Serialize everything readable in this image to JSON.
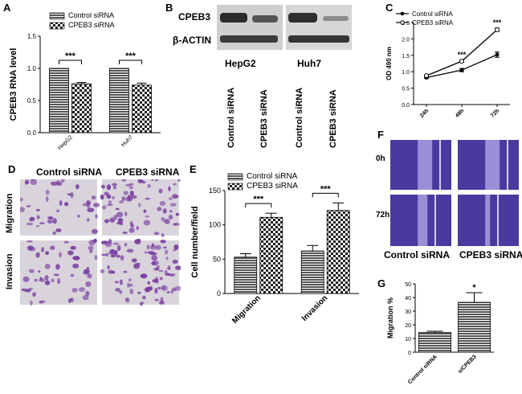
{
  "panels": {
    "A": "A",
    "B": "B",
    "C": "C",
    "D": "D",
    "E": "E",
    "F": "F",
    "G": "G"
  },
  "blot": {
    "row_labels": [
      "CPEB3",
      "β-ACTIN"
    ],
    "cell_lines": [
      "HepG2",
      "Huh7"
    ],
    "lanes": [
      "Control siRNA",
      "CPEB3 siRNA",
      "Control siRNA",
      "CPEB3 siRNA"
    ]
  },
  "transwell": {
    "columns": [
      "Control siRNA",
      "CPEB3 siRNA"
    ],
    "rows": [
      "Migration",
      "Invasion"
    ]
  },
  "wound": {
    "rows": [
      "0h",
      "72h"
    ],
    "columns": [
      "Control siRNA",
      "CPEB3 siRNA"
    ]
  },
  "colors": {
    "purple_dark": "#4a3aa0",
    "purple_light": "#9a8fd6",
    "stain": "#7a3fa0",
    "bg_stain": "#d9d4dc"
  },
  "chart_data": [
    {
      "id": "A",
      "type": "bar",
      "categories": [
        "HepG2",
        "Huh7"
      ],
      "series": [
        {
          "name": "Control siRNA",
          "values": [
            1.0,
            1.0
          ],
          "errors": [
            0,
            0
          ]
        },
        {
          "name": "CPEB3 siRNA",
          "values": [
            0.76,
            0.74
          ],
          "errors": [
            0.02,
            0.03
          ]
        }
      ],
      "ylabel": "CPEB3 RNA level",
      "ylim": [
        0,
        1.5
      ],
      "yticks": [
        "0.0",
        "0.5",
        "1.0",
        "1.5"
      ],
      "significance": [
        "***",
        "***"
      ]
    },
    {
      "id": "C",
      "type": "line",
      "x": [
        "24h",
        "48h",
        "72h"
      ],
      "series": [
        {
          "name": "Control siRNA",
          "values": [
            0.82,
            1.05,
            1.52
          ],
          "errors": [
            0.02,
            0.05,
            0.08
          ]
        },
        {
          "name": "CPEB3 siRNA",
          "values": [
            0.88,
            1.32,
            2.28
          ],
          "errors": [
            0.02,
            0.03,
            0.05
          ]
        }
      ],
      "ylabel": "OD 490 nm",
      "ylim": [
        0,
        2.5
      ],
      "yticks": [
        "0.0",
        "0.5",
        "1.0",
        "1.5",
        "2.0",
        "2.5"
      ],
      "significance": [
        "",
        "***",
        "***"
      ]
    },
    {
      "id": "E",
      "type": "bar",
      "categories": [
        "Migration",
        "Invasion"
      ],
      "series": [
        {
          "name": "Control siRNA",
          "values": [
            53,
            62
          ],
          "errors": [
            5,
            8
          ]
        },
        {
          "name": "CPEB3 siRNA",
          "values": [
            111,
            121
          ],
          "errors": [
            6,
            11
          ]
        }
      ],
      "ylabel": "Cell number/field",
      "ylim": [
        0,
        150
      ],
      "yticks": [
        "0",
        "50",
        "100",
        "150"
      ],
      "significance": [
        "***",
        "***"
      ]
    },
    {
      "id": "G",
      "type": "bar",
      "categories": [
        "Control siRNA",
        "siCPEB3"
      ],
      "series": [
        {
          "name": "",
          "values": [
            14.5,
            36.5
          ],
          "errors": [
            0.8,
            7
          ]
        }
      ],
      "ylabel": "Migration %",
      "ylim": [
        0,
        50
      ],
      "yticks": [
        "0",
        "10",
        "20",
        "30",
        "40",
        "50"
      ],
      "significance": [
        "",
        "*"
      ]
    }
  ]
}
